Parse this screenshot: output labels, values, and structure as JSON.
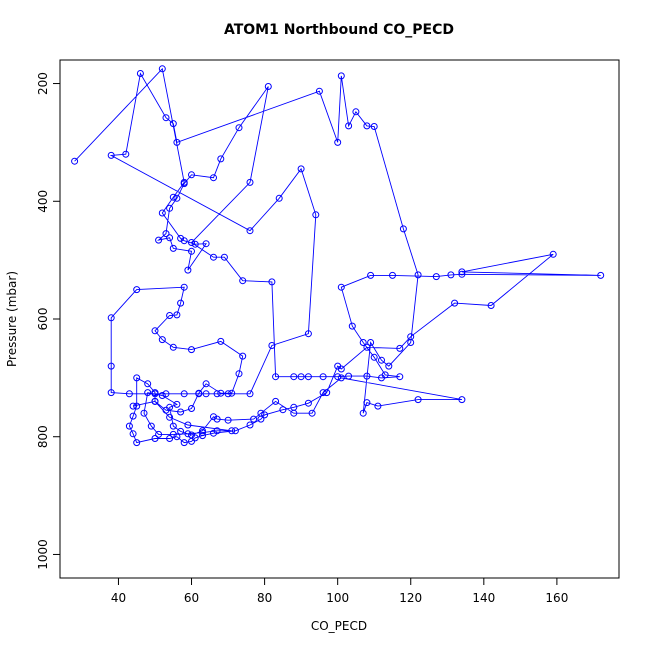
{
  "chart_data": {
    "type": "line",
    "title": "ATOM1 Northbound CO_PECD",
    "xlabel": "CO_PECD",
    "ylabel": "Pressure (mbar)",
    "xlim": [
      24,
      177
    ],
    "ylim": [
      1040,
      160
    ],
    "y_reversed": true,
    "grid": false,
    "legend": "none",
    "x_ticks": [
      40,
      60,
      80,
      100,
      120,
      140,
      160
    ],
    "y_ticks": [
      200,
      400,
      600,
      800,
      1000
    ],
    "series_color": "#0000ff",
    "marker": "open-circle",
    "series": [
      {
        "values": [
          [
            28,
            332
          ],
          [
            52,
            175
          ],
          [
            58,
            368
          ],
          [
            55,
            393
          ],
          [
            52,
            420
          ],
          [
            57,
            463
          ],
          [
            58,
            467
          ],
          [
            61,
            473
          ],
          [
            64,
            472
          ],
          [
            59,
            517
          ],
          [
            60,
            485
          ],
          [
            55,
            480
          ],
          [
            54,
            462
          ],
          [
            51,
            466
          ],
          [
            53,
            455
          ],
          [
            54,
            412
          ],
          [
            56,
            395
          ],
          [
            58,
            370
          ],
          [
            60,
            355
          ],
          [
            66,
            360
          ],
          [
            68,
            328
          ],
          [
            73,
            275
          ],
          [
            81,
            205
          ],
          [
            76,
            368
          ],
          [
            60,
            470
          ],
          [
            66,
            495
          ],
          [
            69,
            495
          ],
          [
            74,
            535
          ],
          [
            82,
            537
          ],
          [
            83,
            698
          ],
          [
            88,
            698
          ],
          [
            90,
            698
          ],
          [
            92,
            698
          ],
          [
            96,
            698
          ],
          [
            100,
            698
          ],
          [
            103,
            697
          ],
          [
            108,
            697
          ],
          [
            112,
            700
          ],
          [
            117,
            698
          ],
          [
            113,
            695
          ],
          [
            110,
            665
          ],
          [
            107,
            640
          ],
          [
            104,
            612
          ],
          [
            101,
            546
          ],
          [
            109,
            526
          ],
          [
            115,
            526
          ],
          [
            127,
            528
          ],
          [
            131,
            525
          ],
          [
            134,
            524
          ],
          [
            172,
            526
          ],
          [
            134,
            520
          ],
          [
            159,
            490
          ],
          [
            142,
            577
          ],
          [
            132,
            573
          ],
          [
            120,
            630
          ],
          [
            117,
            650
          ],
          [
            108,
            648
          ],
          [
            101,
            685
          ],
          [
            100,
            680
          ],
          [
            97,
            725
          ],
          [
            92,
            743
          ],
          [
            88,
            750
          ],
          [
            85,
            754
          ],
          [
            80,
            763
          ],
          [
            79,
            770
          ],
          [
            76,
            780
          ],
          [
            72,
            790
          ],
          [
            66,
            794
          ],
          [
            63,
            798
          ],
          [
            61,
            802
          ],
          [
            60,
            808
          ],
          [
            58,
            810
          ],
          [
            56,
            800
          ],
          [
            54,
            803
          ],
          [
            50,
            803
          ],
          [
            45,
            810
          ],
          [
            44,
            795
          ],
          [
            43,
            782
          ],
          [
            44,
            765
          ],
          [
            45,
            748
          ],
          [
            45,
            700
          ],
          [
            48,
            710
          ],
          [
            50,
            725
          ],
          [
            50,
            740
          ],
          [
            53,
            755
          ],
          [
            57,
            758
          ],
          [
            60,
            752
          ],
          [
            62,
            726
          ],
          [
            64,
            710
          ],
          [
            68,
            726
          ],
          [
            71,
            726
          ],
          [
            73,
            693
          ],
          [
            74,
            663
          ],
          [
            68,
            638
          ],
          [
            60,
            652
          ],
          [
            55,
            648
          ],
          [
            52,
            635
          ],
          [
            50,
            620
          ],
          [
            54,
            594
          ],
          [
            56,
            593
          ],
          [
            57,
            573
          ],
          [
            58,
            546
          ],
          [
            45,
            550
          ],
          [
            38,
            598
          ],
          [
            38,
            680
          ],
          [
            38,
            725
          ],
          [
            43,
            727
          ],
          [
            50,
            727
          ],
          [
            53,
            727
          ],
          [
            58,
            727
          ],
          [
            62,
            727
          ],
          [
            64,
            727
          ],
          [
            67,
            727
          ],
          [
            70,
            727
          ],
          [
            76,
            727
          ],
          [
            82,
            645
          ],
          [
            92,
            625
          ],
          [
            94,
            423
          ],
          [
            90,
            345
          ],
          [
            84,
            395
          ],
          [
            76,
            450
          ],
          [
            38,
            322
          ],
          [
            42,
            320
          ],
          [
            46,
            183
          ],
          [
            53,
            258
          ],
          [
            55,
            268
          ],
          [
            56,
            300
          ],
          [
            95,
            213
          ],
          [
            100,
            300
          ],
          [
            101,
            187
          ],
          [
            103,
            272
          ],
          [
            105,
            248
          ],
          [
            108,
            272
          ],
          [
            110,
            273
          ],
          [
            118,
            447
          ],
          [
            122,
            525
          ],
          [
            120,
            640
          ],
          [
            114,
            680
          ],
          [
            112,
            670
          ],
          [
            109,
            640
          ],
          [
            107,
            760
          ],
          [
            108,
            742
          ],
          [
            111,
            748
          ],
          [
            122,
            737
          ],
          [
            134,
            737
          ],
          [
            101,
            700
          ],
          [
            96,
            725
          ],
          [
            93,
            760
          ],
          [
            88,
            760
          ],
          [
            83,
            740
          ],
          [
            79,
            760
          ],
          [
            77,
            770
          ],
          [
            70,
            772
          ],
          [
            67,
            770
          ],
          [
            66,
            766
          ],
          [
            63,
            790
          ],
          [
            60,
            797
          ],
          [
            57,
            791
          ],
          [
            55,
            782
          ],
          [
            54,
            750
          ],
          [
            56,
            745
          ],
          [
            52,
            730
          ],
          [
            48,
            725
          ],
          [
            47,
            760
          ],
          [
            49,
            782
          ],
          [
            51,
            796
          ],
          [
            55,
            796
          ],
          [
            59,
            795
          ],
          [
            63,
            793
          ],
          [
            67,
            790
          ],
          [
            71,
            790
          ],
          [
            59,
            780
          ],
          [
            54,
            767
          ],
          [
            50,
            740
          ],
          [
            44,
            748
          ]
        ]
      }
    ]
  }
}
